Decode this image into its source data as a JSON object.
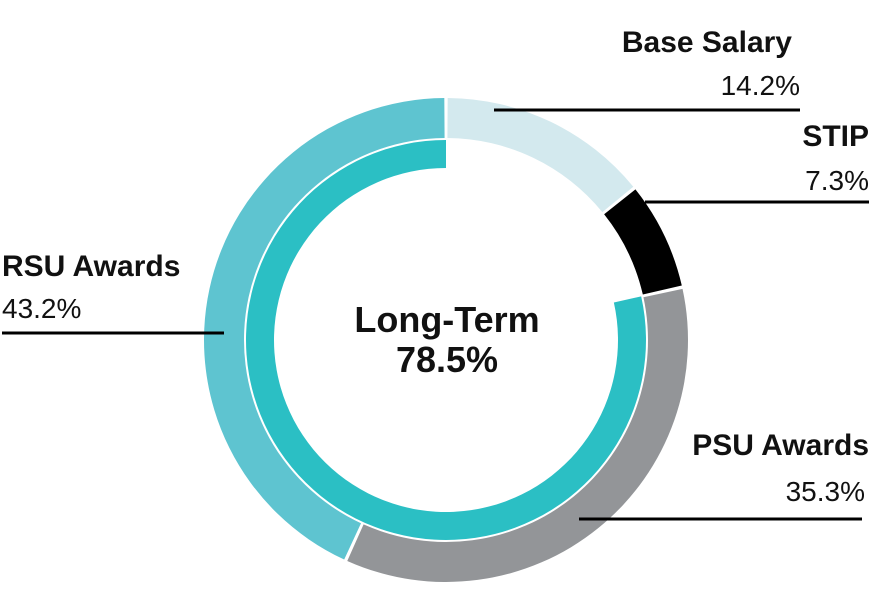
{
  "chart_data": {
    "type": "pie",
    "variant": "donut-with-inner-ring",
    "slices": [
      {
        "label": "Base Salary",
        "value_label": "14.2%",
        "value": 14.2,
        "color": "#d3e9ee"
      },
      {
        "label": "STIP",
        "value_label": "7.3%",
        "value": 7.3,
        "color": "#000000"
      },
      {
        "label": "PSU Awards",
        "value_label": "35.3%",
        "value": 35.3,
        "color": "#939598"
      },
      {
        "label": "RSU Awards",
        "value_label": "43.2%",
        "value": 43.2,
        "color": "#5ec4d0"
      }
    ],
    "inner_ring": {
      "title": "Long-Term",
      "value_label": "78.5%",
      "value": 78.5,
      "color": "#2bbfc4"
    }
  }
}
